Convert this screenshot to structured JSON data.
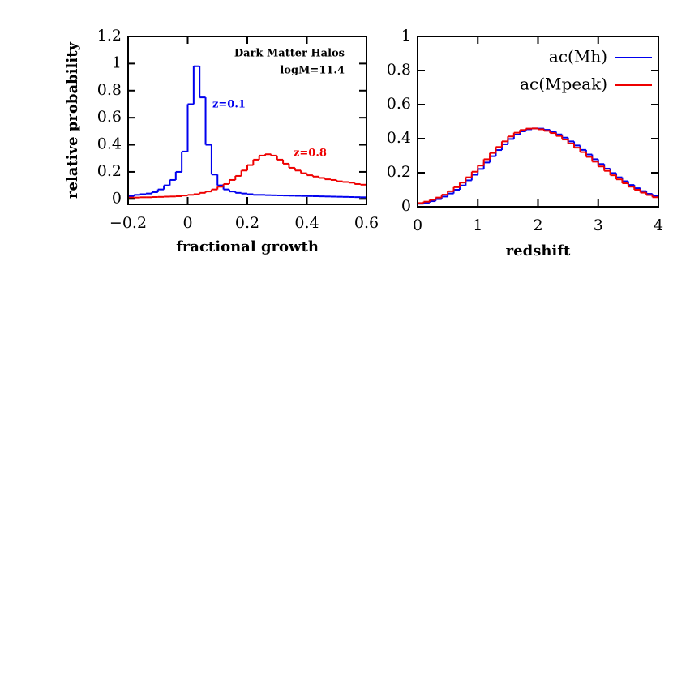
{
  "chart_data": [
    {
      "type": "histogram",
      "xlabel": "fractional growth",
      "ylabel": "relative probability",
      "bins": [
        -0.2,
        -0.18,
        -0.16,
        -0.14,
        -0.12,
        -0.1,
        -0.08,
        -0.06,
        -0.04,
        -0.02,
        0,
        0.02,
        0.04,
        0.06,
        0.08,
        0.1,
        0.12,
        0.14,
        0.16,
        0.18,
        0.2,
        0.22,
        0.24,
        0.26,
        0.28,
        0.3,
        0.32,
        0.34,
        0.36,
        0.38,
        0.4,
        0.42,
        0.44,
        0.46,
        0.48,
        0.5,
        0.52,
        0.54,
        0.56,
        0.58,
        0.6
      ],
      "series": [
        {
          "color": "#0000ee",
          "values": [
            0.02,
            0.03,
            0.035,
            0.04,
            0.05,
            0.07,
            0.1,
            0.14,
            0.2,
            0.35,
            0.7,
            0.98,
            0.75,
            0.4,
            0.18,
            0.1,
            0.07,
            0.055,
            0.045,
            0.04,
            0.035,
            0.03,
            0.03,
            0.028,
            0.027,
            0.026,
            0.025,
            0.024,
            0.023,
            0.022,
            0.021,
            0.02,
            0.019,
            0.018,
            0.017,
            0.016,
            0.015,
            0.014,
            0.013,
            0.012
          ]
        },
        {
          "color": "#ee0000",
          "values": [
            0.01,
            0.01,
            0.012,
            0.012,
            0.014,
            0.015,
            0.017,
            0.018,
            0.02,
            0.025,
            0.03,
            0.035,
            0.045,
            0.055,
            0.07,
            0.09,
            0.11,
            0.14,
            0.17,
            0.21,
            0.25,
            0.29,
            0.32,
            0.33,
            0.32,
            0.29,
            0.26,
            0.23,
            0.21,
            0.19,
            0.175,
            0.165,
            0.155,
            0.145,
            0.14,
            0.13,
            0.125,
            0.12,
            0.11,
            0.105
          ]
        }
      ],
      "annotations": [
        {
          "text": "Dark Matter Halos",
          "color": "#000000"
        },
        {
          "text": "logM=11.4",
          "color": "#000000"
        },
        {
          "text": "z=0.1",
          "color": "#0000ee"
        },
        {
          "text": "z=0.8",
          "color": "#ee0000"
        }
      ],
      "xlim": [
        -0.2,
        0.6
      ],
      "xticks": [
        {
          "value": -0.2,
          "label": "−0.2"
        },
        0,
        0.2,
        0.4,
        0.6
      ],
      "ylim": [
        -0.04,
        1.2
      ],
      "yticks": [
        0,
        0.2,
        0.4,
        0.6,
        0.8,
        1,
        1.2
      ]
    },
    {
      "type": "histogram",
      "xlabel": "redshift",
      "bins": [
        0,
        0.1,
        0.2,
        0.3,
        0.4,
        0.5,
        0.6,
        0.7,
        0.8,
        0.9,
        1,
        1.1,
        1.2,
        1.3,
        1.4,
        1.5,
        1.6,
        1.7,
        1.8,
        1.9,
        2,
        2.1,
        2.2,
        2.3,
        2.4,
        2.5,
        2.6,
        2.7,
        2.8,
        2.9,
        3,
        3.1,
        3.2,
        3.3,
        3.4,
        3.5,
        3.6,
        3.7,
        3.8,
        3.9,
        4
      ],
      "series": [
        {
          "name": "ac(Mh)",
          "color": "#0000ee",
          "values": [
            0.018,
            0.024,
            0.033,
            0.045,
            0.06,
            0.078,
            0.1,
            0.125,
            0.155,
            0.188,
            0.222,
            0.26,
            0.297,
            0.333,
            0.367,
            0.398,
            0.424,
            0.443,
            0.455,
            0.46,
            0.459,
            0.452,
            0.441,
            0.425,
            0.406,
            0.384,
            0.36,
            0.334,
            0.307,
            0.279,
            0.251,
            0.224,
            0.198,
            0.173,
            0.15,
            0.128,
            0.109,
            0.092,
            0.076,
            0.062
          ]
        },
        {
          "name": "ac(Mpeak)",
          "color": "#ee0000",
          "values": [
            0.022,
            0.03,
            0.041,
            0.054,
            0.071,
            0.091,
            0.115,
            0.142,
            0.173,
            0.206,
            0.242,
            0.279,
            0.316,
            0.351,
            0.384,
            0.413,
            0.435,
            0.451,
            0.459,
            0.46,
            0.455,
            0.446,
            0.433,
            0.416,
            0.395,
            0.372,
            0.347,
            0.321,
            0.293,
            0.265,
            0.237,
            0.211,
            0.185,
            0.161,
            0.138,
            0.118,
            0.1,
            0.083,
            0.069,
            0.056
          ]
        }
      ],
      "legend": "upper right",
      "xlim": [
        0,
        4
      ],
      "xticks": [
        0,
        1,
        2,
        3,
        4
      ],
      "ylim": [
        0,
        1
      ],
      "yticks": [
        0,
        0.2,
        0.4,
        0.6,
        0.8,
        1
      ]
    }
  ]
}
